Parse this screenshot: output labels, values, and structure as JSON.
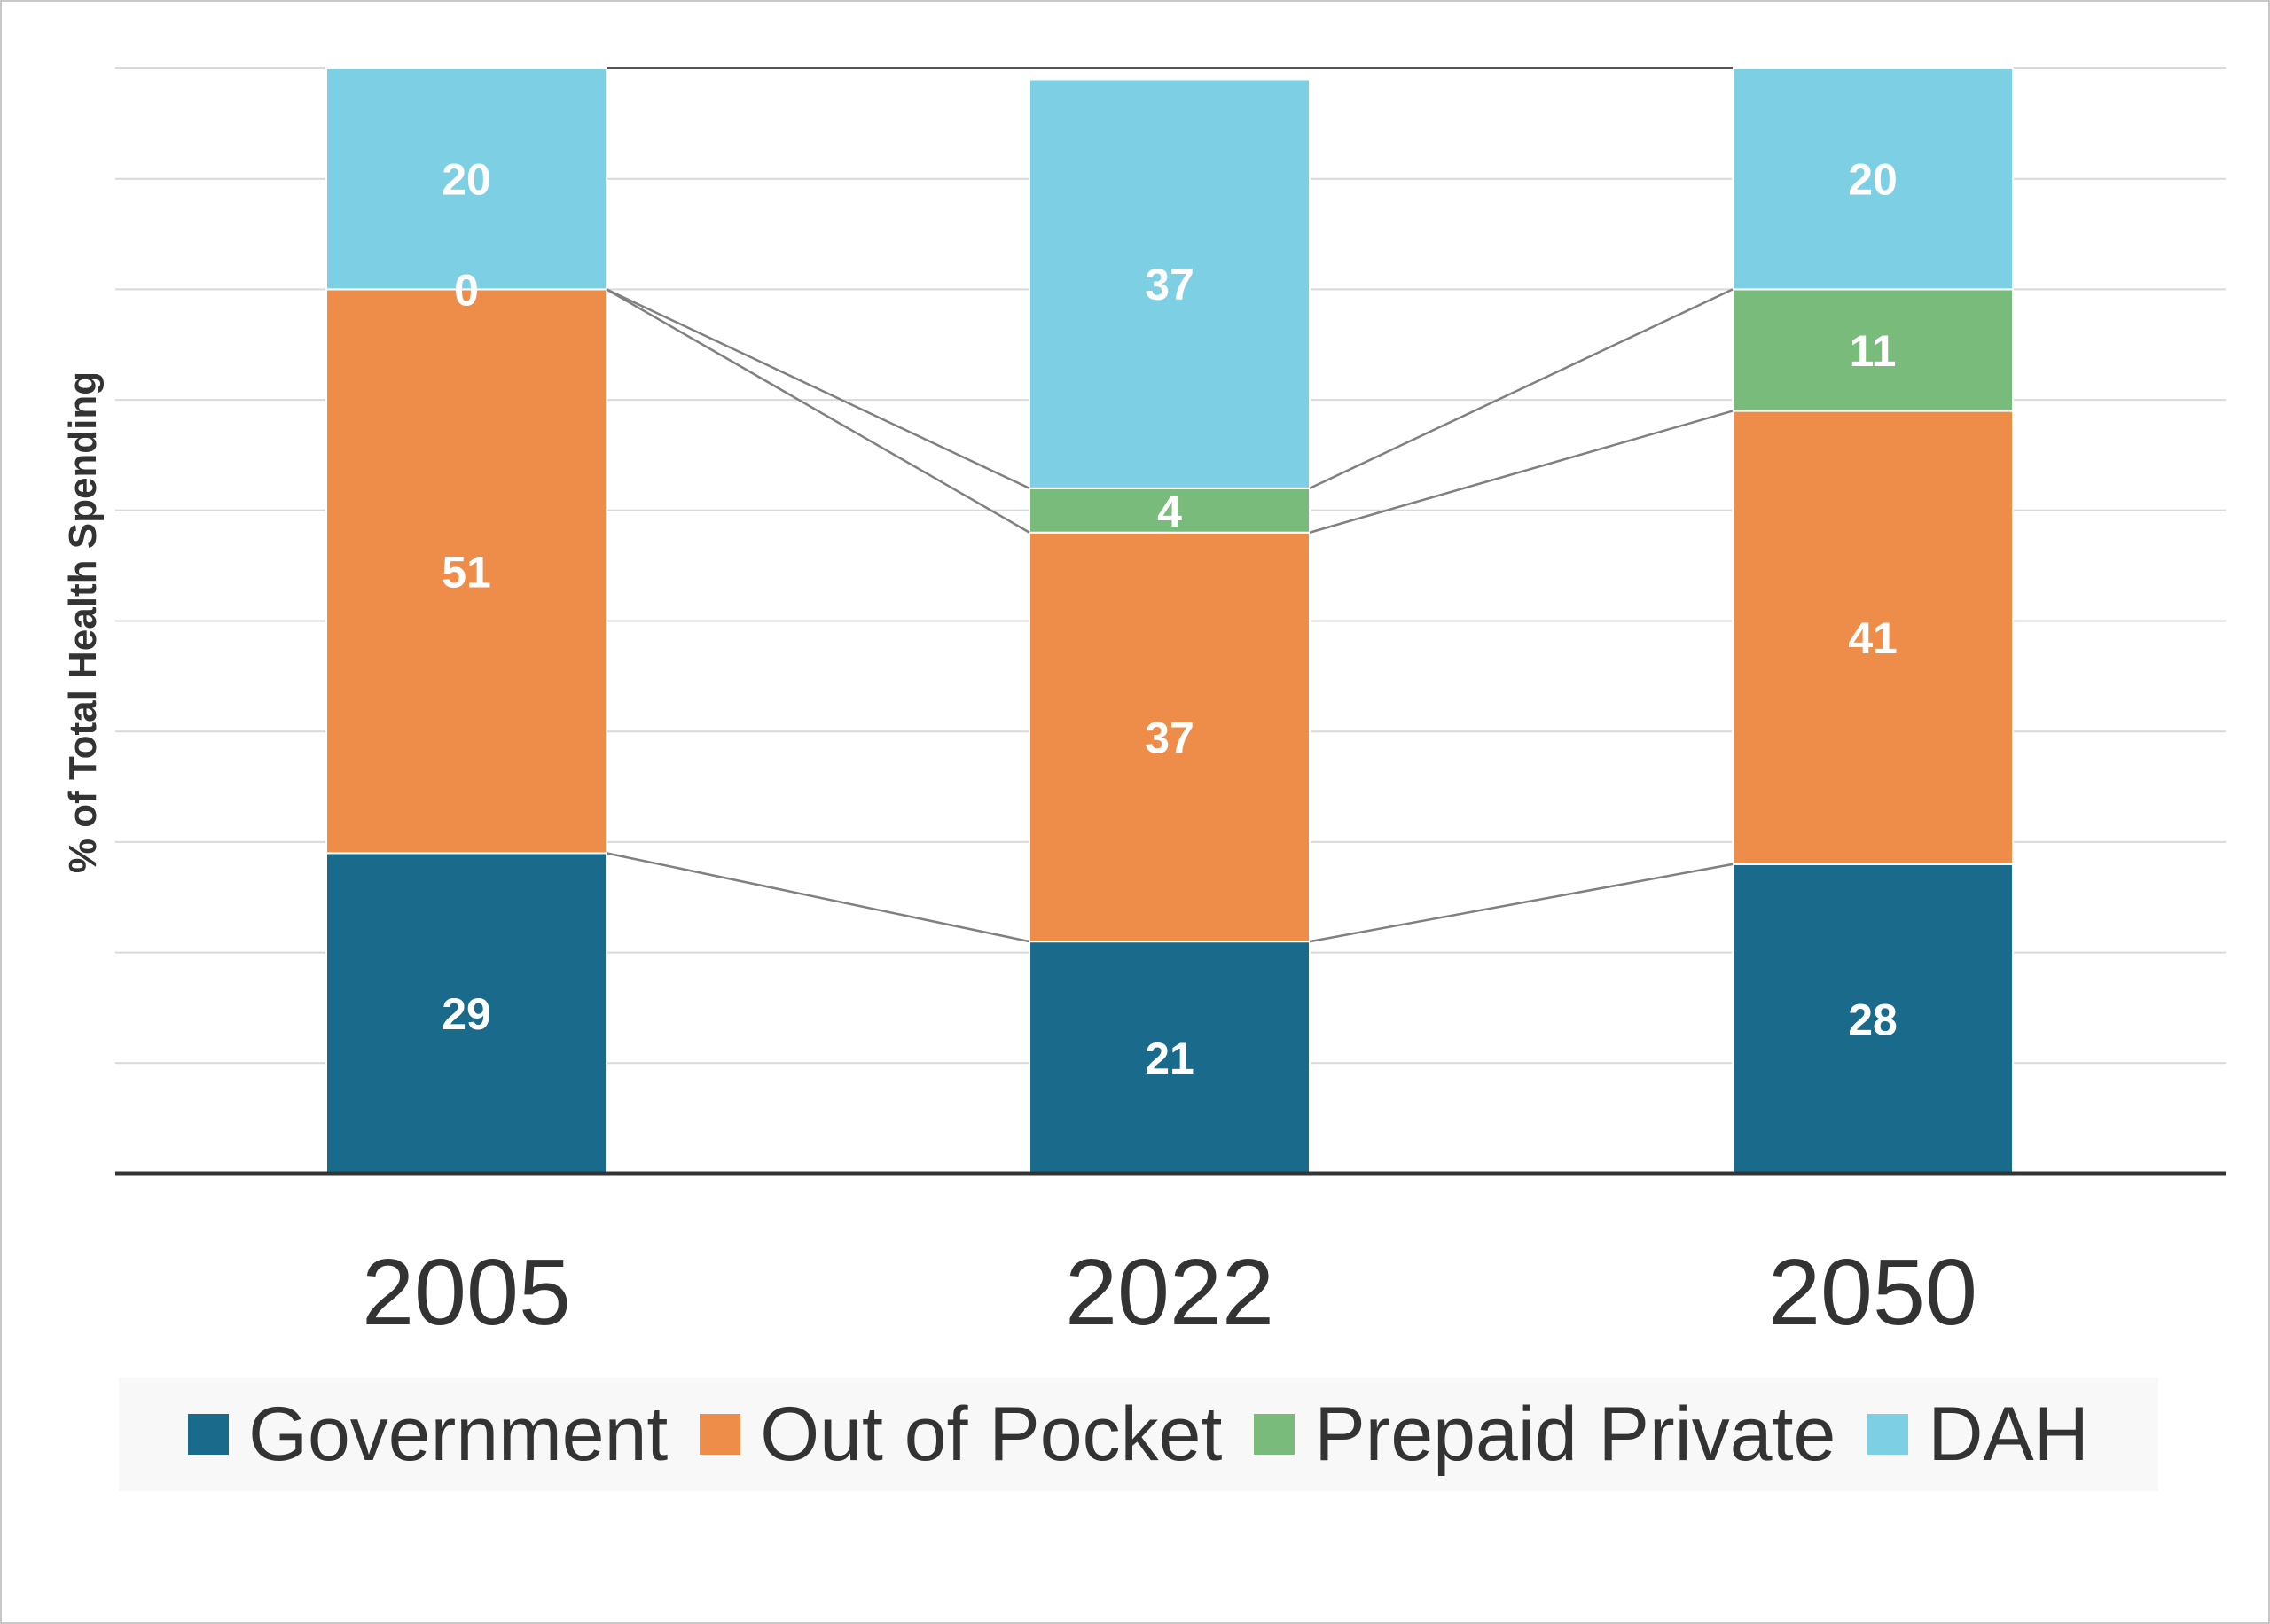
{
  "chart_data": {
    "type": "bar",
    "stacked": true,
    "title": "",
    "xlabel": "",
    "ylabel": "% of Total Health Spending",
    "ylim": [
      0,
      100
    ],
    "grid": true,
    "legend_position": "bottom",
    "categories": [
      "2005",
      "2022",
      "2050"
    ],
    "series": [
      {
        "name": "Government",
        "color": "#1a6a8c",
        "values": [
          29,
          21,
          28
        ]
      },
      {
        "name": "Out of Pocket",
        "color": "#ee8c4a",
        "values": [
          51,
          37,
          41
        ]
      },
      {
        "name": "Prepaid Private",
        "color": "#79bb7a",
        "values": [
          0,
          4,
          11
        ]
      },
      {
        "name": "DAH",
        "color": "#7dd0e3",
        "values": [
          20,
          37,
          20
        ]
      }
    ]
  }
}
